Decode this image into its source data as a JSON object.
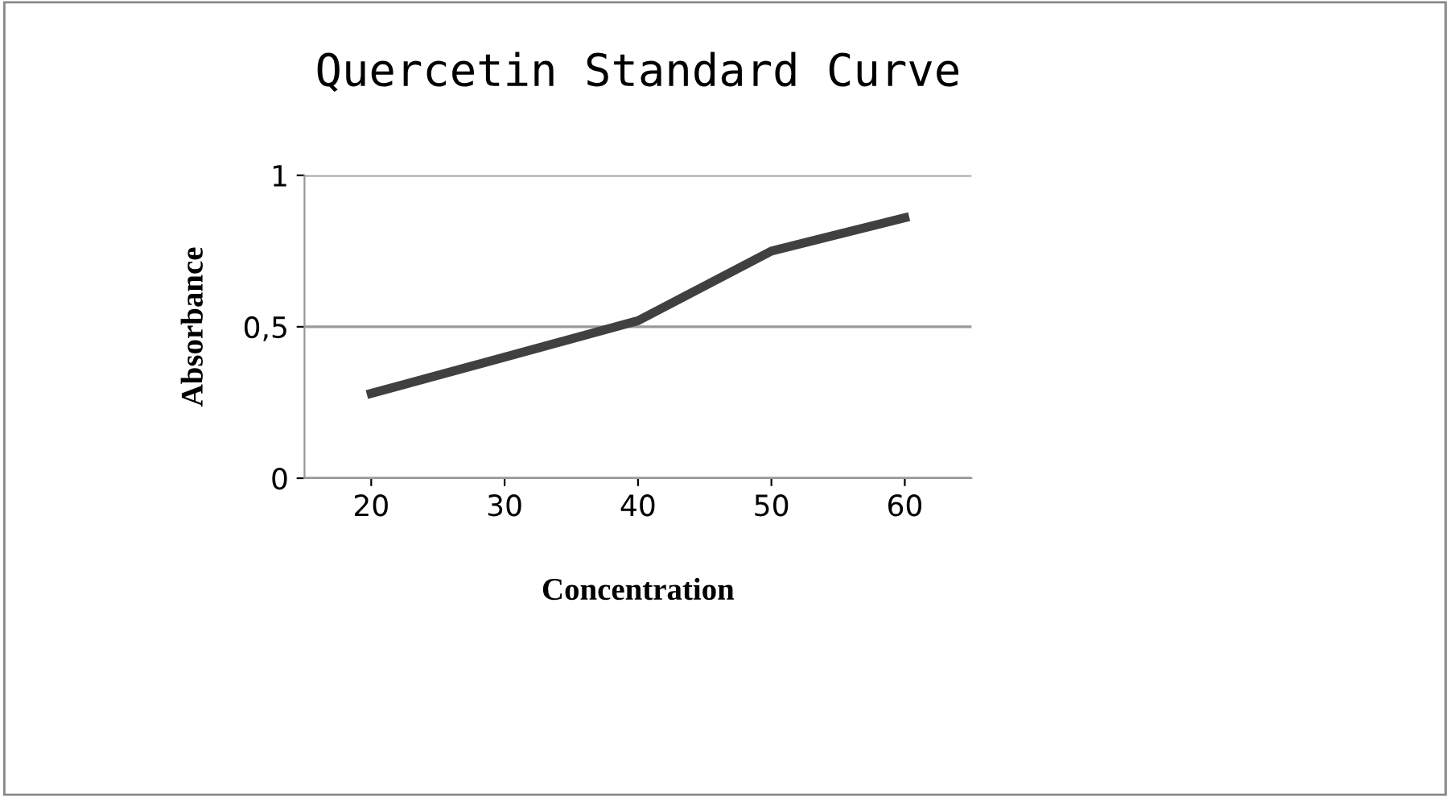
{
  "chart_data": {
    "type": "line",
    "title": "Quercetin Standard Curve",
    "xlabel": "Concentration",
    "ylabel": "Absorbance",
    "categories": [
      "20",
      "30",
      "40",
      "50",
      "60"
    ],
    "series": [
      {
        "color": "#404040",
        "values": [
          0.28,
          0.4,
          0.52,
          0.75,
          0.86
        ]
      }
    ],
    "ylim": [
      0,
      1
    ],
    "yticks": [
      {
        "value": 0,
        "label": "0"
      },
      {
        "value": 0.5,
        "label": "0,5"
      },
      {
        "value": 1,
        "label": "1"
      }
    ],
    "grid": "y",
    "legend": false,
    "marker": "none",
    "line_style": "solid"
  }
}
